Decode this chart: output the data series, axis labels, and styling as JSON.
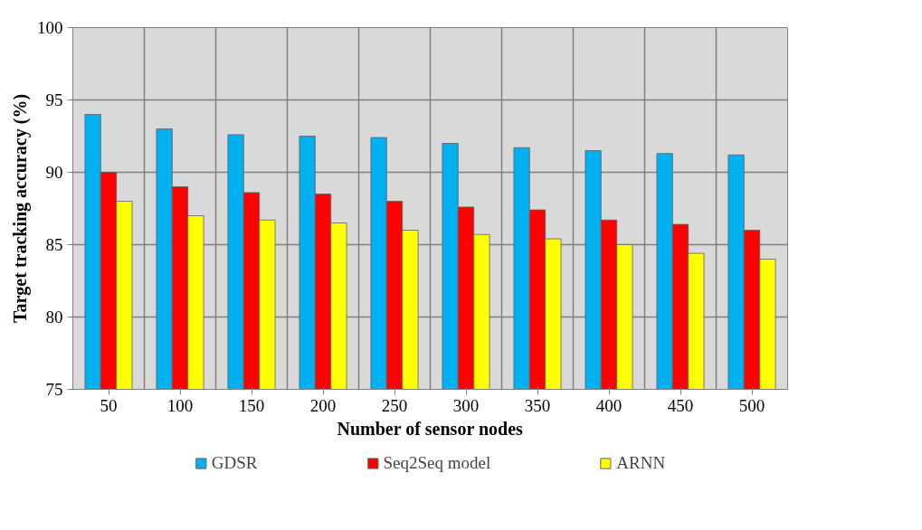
{
  "chart_data": {
    "type": "bar",
    "xlabel": "Number of sensor nodes",
    "ylabel": "Target tracking accuracy (%)",
    "categories": [
      "50",
      "100",
      "150",
      "200",
      "250",
      "300",
      "350",
      "400",
      "450",
      "500"
    ],
    "series": [
      {
        "name": "GDSR",
        "color": "#00b0f0",
        "values": [
          94.0,
          93.0,
          92.6,
          92.5,
          92.4,
          92.0,
          91.7,
          91.5,
          91.3,
          91.2
        ]
      },
      {
        "name": "Seq2Seq model",
        "color": "#ff0000",
        "values": [
          90.0,
          89.0,
          88.6,
          88.5,
          88.0,
          87.6,
          87.4,
          86.7,
          86.4,
          86.0
        ]
      },
      {
        "name": "ARNN",
        "color": "#ffff00",
        "values": [
          88.0,
          87.0,
          86.7,
          86.5,
          86.0,
          85.7,
          85.4,
          85.0,
          84.4,
          84.0
        ]
      }
    ],
    "ylim": [
      75,
      100
    ],
    "yticks": [
      75,
      80,
      85,
      90,
      95,
      100
    ],
    "grid": true,
    "legend": "bottom"
  }
}
